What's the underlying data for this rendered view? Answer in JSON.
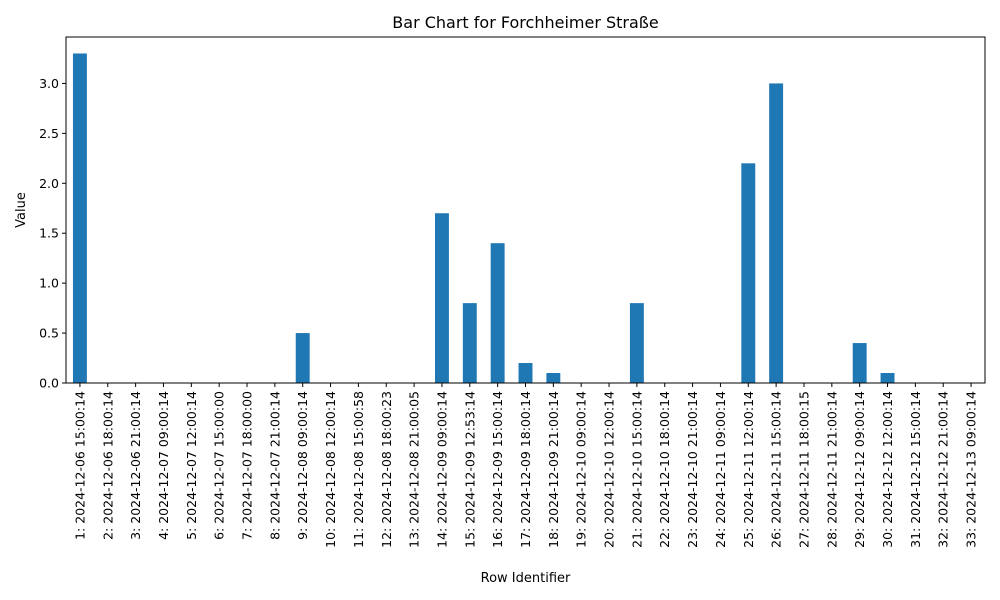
{
  "chart_data": {
    "type": "bar",
    "title": "Bar Chart for Forchheimer Straße",
    "xlabel": "Row Identifier",
    "ylabel": "Value",
    "ylim": [
      0,
      3.465
    ],
    "yticks": [
      0.0,
      0.5,
      1.0,
      1.5,
      2.0,
      2.5,
      3.0
    ],
    "ytick_labels": [
      "0.0",
      "0.5",
      "1.0",
      "1.5",
      "2.0",
      "2.5",
      "3.0"
    ],
    "grid": false,
    "bar_color": "#1f77b4",
    "categories": [
      "1: 2024-12-06 15:00:14",
      "2: 2024-12-06 18:00:14",
      "3: 2024-12-06 21:00:14",
      "4: 2024-12-07 09:00:14",
      "5: 2024-12-07 12:00:14",
      "6: 2024-12-07 15:00:00",
      "7: 2024-12-07 18:00:00",
      "8: 2024-12-07 21:00:14",
      "9: 2024-12-08 09:00:14",
      "10: 2024-12-08 12:00:14",
      "11: 2024-12-08 15:00:58",
      "12: 2024-12-08 18:00:23",
      "13: 2024-12-08 21:00:05",
      "14: 2024-12-09 09:00:14",
      "15: 2024-12-09 12:53:14",
      "16: 2024-12-09 15:00:14",
      "17: 2024-12-09 18:00:14",
      "18: 2024-12-09 21:00:14",
      "19: 2024-12-10 09:00:14",
      "20: 2024-12-10 12:00:14",
      "21: 2024-12-10 15:00:14",
      "22: 2024-12-10 18:00:14",
      "23: 2024-12-10 21:00:14",
      "24: 2024-12-11 09:00:14",
      "25: 2024-12-11 12:00:14",
      "26: 2024-12-11 15:00:14",
      "27: 2024-12-11 18:00:15",
      "28: 2024-12-11 21:00:14",
      "29: 2024-12-12 09:00:14",
      "30: 2024-12-12 12:00:14",
      "31: 2024-12-12 15:00:14",
      "32: 2024-12-12 21:00:14",
      "33: 2024-12-13 09:00:14"
    ],
    "values": [
      3.3,
      0,
      0,
      0,
      0,
      0,
      0,
      0,
      0.5,
      0,
      0,
      0,
      0,
      1.7,
      0.8,
      1.4,
      0.2,
      0.1,
      0,
      0,
      0.8,
      0,
      0,
      0,
      2.2,
      3.0,
      0,
      0,
      0.4,
      0.1,
      0,
      0,
      0
    ]
  }
}
